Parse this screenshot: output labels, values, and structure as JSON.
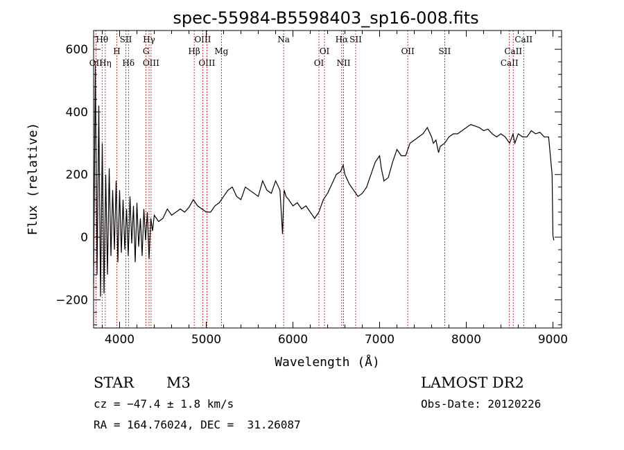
{
  "chart_data": {
    "type": "line",
    "title": "spec-55984-B5598403_sp16-008.fits",
    "xlabel": "Wavelength (Å)",
    "ylabel": "Flux (relative)",
    "xlim": [
      3700,
      9100
    ],
    "ylim": [
      -290,
      660
    ],
    "xticks": [
      4000,
      5000,
      6000,
      7000,
      8000,
      9000
    ],
    "yticks": [
      -200,
      0,
      200,
      400,
      600
    ],
    "series": [
      {
        "name": "spectrum",
        "x": [
          3700,
          3720,
          3740,
          3760,
          3780,
          3800,
          3820,
          3840,
          3860,
          3880,
          3900,
          3920,
          3940,
          3960,
          3980,
          4000,
          4020,
          4040,
          4060,
          4080,
          4100,
          4120,
          4140,
          4160,
          4180,
          4200,
          4220,
          4240,
          4260,
          4280,
          4300,
          4320,
          4340,
          4360,
          4380,
          4400,
          4450,
          4500,
          4550,
          4600,
          4650,
          4700,
          4750,
          4800,
          4850,
          4900,
          4950,
          5000,
          5050,
          5100,
          5150,
          5200,
          5250,
          5300,
          5350,
          5400,
          5450,
          5500,
          5550,
          5600,
          5650,
          5700,
          5750,
          5800,
          5850,
          5880,
          5890,
          5900,
          5920,
          5950,
          6000,
          6050,
          6100,
          6150,
          6200,
          6250,
          6300,
          6350,
          6400,
          6450,
          6500,
          6550,
          6580,
          6600,
          6650,
          6700,
          6750,
          6800,
          6850,
          6900,
          6950,
          7000,
          7020,
          7050,
          7100,
          7150,
          7200,
          7250,
          7300,
          7350,
          7400,
          7450,
          7500,
          7550,
          7600,
          7620,
          7650,
          7680,
          7700,
          7750,
          7800,
          7850,
          7900,
          7950,
          8000,
          8050,
          8100,
          8150,
          8200,
          8250,
          8300,
          8350,
          8400,
          8450,
          8500,
          8540,
          8560,
          8600,
          8650,
          8700,
          8750,
          8800,
          8850,
          8900,
          8950,
          8990,
          9000,
          9010
        ],
        "y": [
          -150,
          550,
          -120,
          420,
          -190,
          300,
          -180,
          200,
          -120,
          220,
          -60,
          150,
          -40,
          180,
          -80,
          150,
          -50,
          120,
          -40,
          90,
          -60,
          130,
          -20,
          100,
          -80,
          110,
          -30,
          60,
          -60,
          90,
          -10,
          80,
          -70,
          60,
          20,
          70,
          50,
          60,
          90,
          70,
          80,
          90,
          80,
          95,
          120,
          100,
          90,
          80,
          80,
          100,
          110,
          130,
          150,
          160,
          130,
          120,
          160,
          150,
          140,
          130,
          180,
          150,
          140,
          180,
          150,
          10,
          100,
          150,
          130,
          120,
          100,
          110,
          90,
          100,
          80,
          60,
          80,
          120,
          140,
          170,
          200,
          210,
          230,
          200,
          170,
          150,
          130,
          140,
          160,
          200,
          240,
          260,
          220,
          180,
          190,
          240,
          280,
          260,
          260,
          300,
          310,
          320,
          330,
          350,
          320,
          300,
          310,
          270,
          290,
          300,
          320,
          330,
          330,
          340,
          350,
          360,
          355,
          350,
          340,
          345,
          330,
          320,
          330,
          320,
          300,
          330,
          300,
          330,
          320,
          320,
          340,
          330,
          335,
          320,
          320,
          200,
          5,
          -10
        ]
      }
    ],
    "lines": [
      {
        "name": "Hθ",
        "x": 3798,
        "row": 1
      },
      {
        "name": "OII",
        "x": 3727,
        "row": 3
      },
      {
        "name": "Hη",
        "x": 3835,
        "row": 3
      },
      {
        "name": "H",
        "x": 3968,
        "row": 2
      },
      {
        "name": "SII",
        "x": 4072,
        "row": 1
      },
      {
        "name": "Hδ",
        "x": 4102,
        "row": 3
      },
      {
        "name": "Hγ",
        "x": 4340,
        "row": 1
      },
      {
        "name": "G",
        "x": 4305,
        "row": 2
      },
      {
        "name": "OIII",
        "x": 4363,
        "row": 3
      },
      {
        "name": "Hβ",
        "x": 4861,
        "row": 2
      },
      {
        "name": "OIII",
        "x": 4959,
        "row": 1
      },
      {
        "name": "OIII",
        "x": 5007,
        "row": 3
      },
      {
        "name": "Mg",
        "x": 5175,
        "row": 2
      },
      {
        "name": "Na",
        "x": 5893,
        "row": 1
      },
      {
        "name": "OI",
        "x": 6300,
        "row": 3
      },
      {
        "name": "OI",
        "x": 6364,
        "row": 2
      },
      {
        "name": "Hα",
        "x": 6563,
        "row": 1
      },
      {
        "name": "NII",
        "x": 6584,
        "row": 3
      },
      {
        "name": "SII",
        "x": 6724,
        "row": 1
      },
      {
        "name": "OII",
        "x": 7325,
        "row": 2
      },
      {
        "name": "SII",
        "x": 7751,
        "row": 2
      },
      {
        "name": "CaII",
        "x": 8498,
        "row": 3
      },
      {
        "name": "CaII",
        "x": 8542,
        "row": 2
      },
      {
        "name": "CaII",
        "x": 8662,
        "row": 1
      }
    ],
    "line_color": "#000000",
    "marker_color": "#b00000"
  },
  "info": {
    "class": "STAR",
    "subclass": "M3",
    "survey": "LAMOST DR2",
    "cz": "cz = −47.4 ± 1.8 km/s",
    "obsdate": "Obs-Date: 20120226",
    "radec": "RA = 164.76024, DEC =  31.26087"
  }
}
